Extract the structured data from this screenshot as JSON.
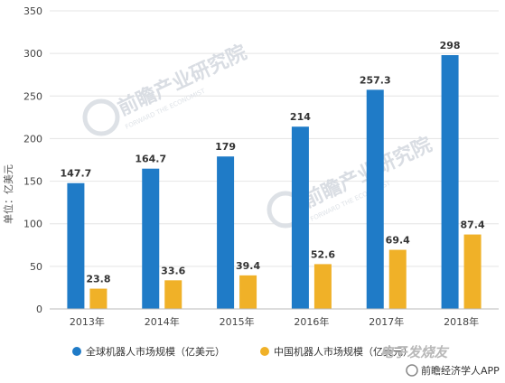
{
  "chart_data": {
    "type": "bar",
    "categories": [
      "2013年",
      "2014年",
      "2015年",
      "2016年",
      "2017年",
      "2018年"
    ],
    "series": [
      {
        "name": "全球机器人市场规模（亿美元）",
        "values": [
          147.7,
          164.7,
          179,
          214,
          257.3,
          298
        ],
        "color": "#1f7bc7"
      },
      {
        "name": "中国机器人市场规模（亿美元）",
        "values": [
          23.8,
          33.6,
          39.4,
          52.6,
          69.4,
          87.4
        ],
        "color": "#f0b128"
      }
    ],
    "data_labels": [
      [
        "147.7",
        "164.7",
        "179",
        "214",
        "257.3",
        "298"
      ],
      [
        "23.8",
        "33.6",
        "39.4",
        "52.6",
        "69.4",
        "87.4"
      ]
    ],
    "yticks": [
      "0",
      "50",
      "100",
      "150",
      "200",
      "250",
      "300",
      "350"
    ],
    "ylim": [
      0,
      350
    ],
    "ylabel": "单位：亿美元",
    "xlabel": "",
    "title": "",
    "grid": true,
    "legend_position": "bottom-left"
  },
  "watermark": {
    "text": "前瞻产业研究院",
    "subtext": "FORWARD THE ECONOMIST"
  },
  "footer": {
    "source": "前瞻经济学人APP",
    "logo": "电子发烧友"
  }
}
